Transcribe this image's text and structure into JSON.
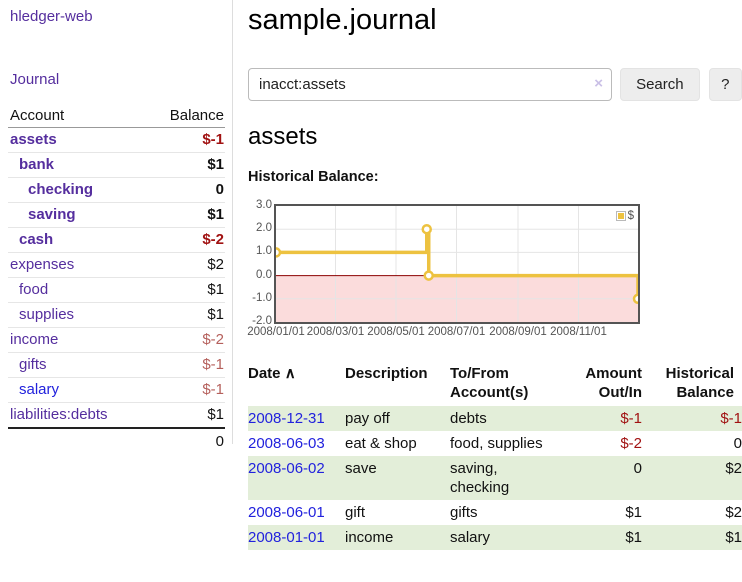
{
  "app": {
    "brand": "hledger-web",
    "nav_journal": "Journal"
  },
  "header": {
    "title": "sample.journal"
  },
  "search": {
    "value": "inacct:assets",
    "clear_icon": "×",
    "button": "Search",
    "help_button": "?"
  },
  "account_page": {
    "title": "assets",
    "chart_label": "Historical Balance:"
  },
  "sidebar": {
    "header": {
      "account": "Account",
      "balance": "Balance"
    },
    "accounts": [
      {
        "name": "assets",
        "indent": 0,
        "bold": true,
        "balance": "$-1",
        "balance_style": "negative-strong"
      },
      {
        "name": "bank",
        "indent": 1,
        "bold": true,
        "balance": "$1",
        "balance_style": "normal"
      },
      {
        "name": "checking",
        "indent": 2,
        "bold": true,
        "balance": "0",
        "balance_style": "normal"
      },
      {
        "name": "saving",
        "indent": 2,
        "bold": true,
        "balance": "$1",
        "balance_style": "normal"
      },
      {
        "name": "cash",
        "indent": 1,
        "bold": true,
        "balance": "$-2",
        "balance_style": "negative-strong"
      },
      {
        "name": "expenses",
        "indent": 0,
        "bold": false,
        "balance": "$2",
        "balance_style": "normal"
      },
      {
        "name": "food",
        "indent": 1,
        "bold": false,
        "balance": "$1",
        "balance_style": "normal"
      },
      {
        "name": "supplies",
        "indent": 1,
        "bold": false,
        "balance": "$1",
        "balance_style": "normal"
      },
      {
        "name": "income",
        "indent": 0,
        "bold": false,
        "balance": "$-2",
        "balance_style": "negative-soft"
      },
      {
        "name": "gifts",
        "indent": 1,
        "bold": false,
        "balance": "$-1",
        "balance_style": "negative-soft"
      },
      {
        "name": "salary",
        "indent": 1,
        "bold": false,
        "balance": "$-1",
        "balance_style": "negative-soft",
        "link_style": "unvisited"
      },
      {
        "name": "liabilities:debts",
        "indent": 0,
        "bold": false,
        "balance": "$1",
        "balance_style": "normal"
      }
    ],
    "total": "0"
  },
  "chart_data": {
    "type": "line",
    "style": "steps",
    "title": "Historical Balance",
    "series": [
      {
        "name": "$",
        "color": "#edc240",
        "points": [
          [
            "2008-01-01",
            1
          ],
          [
            "2008-06-01",
            2
          ],
          [
            "2008-06-03",
            0
          ],
          [
            "2008-12-31",
            -1
          ]
        ]
      }
    ],
    "x_ticks": [
      "2008/01/01",
      "2008/03/01",
      "2008/05/01",
      "2008/07/01",
      "2008/09/01",
      "2008/11/01"
    ],
    "y_ticks": [
      3.0,
      2.0,
      1.0,
      0.0,
      -1.0,
      -2.0
    ],
    "xrange": [
      "2008-01-01",
      "2008-12-31"
    ],
    "ylim": [
      -2,
      3
    ],
    "grid": true,
    "legend_position": "top-right",
    "zero_line_color": "#8b0000",
    "negative_region_color": "#fbdcdc"
  },
  "register": {
    "sort_indicator": "∧",
    "columns": [
      "Date",
      "Description",
      "To/From Account(s)",
      "Amount Out/In",
      "Historical Balance"
    ],
    "rows": [
      {
        "date": "2008-12-31",
        "description": "pay off",
        "accounts": "debts",
        "amount": "$-1",
        "balance": "$-1"
      },
      {
        "date": "2008-06-03",
        "description": "eat & shop",
        "accounts": "food, supplies",
        "amount": "$-2",
        "balance": "0"
      },
      {
        "date": "2008-06-02",
        "description": "save",
        "accounts": "saving, checking",
        "amount": "0",
        "balance": "$2"
      },
      {
        "date": "2008-06-01",
        "description": "gift",
        "accounts": "gifts",
        "amount": "$1",
        "balance": "$2"
      },
      {
        "date": "2008-01-01",
        "description": "income",
        "accounts": "salary",
        "amount": "$1",
        "balance": "$1"
      }
    ]
  },
  "colors": {
    "link_visited_purple": "#552e9e",
    "link_unvisited_blue": "#2222dd",
    "negative_strong": "#a11212",
    "negative_soft": "#b5605c",
    "row_stripe_green": "#e3eed9",
    "chart_line": "#edc240",
    "chart_negative_fill": "#fbdcdc",
    "chart_zero_line": "#8b0000",
    "chart_border": "#545454"
  }
}
